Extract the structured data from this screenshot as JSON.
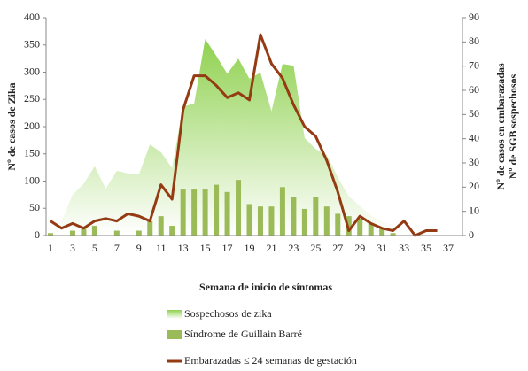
{
  "chart_data": {
    "type": "combo",
    "xlabel": "Semana de inicio de síntomas",
    "ylabel": "Nº de casos de Zika",
    "y2label": [
      "Nº  de casos en embarazadas",
      "Nº  de SGB sospechosos"
    ],
    "categories": [
      1,
      null,
      3,
      null,
      5,
      null,
      7,
      null,
      9,
      null,
      11,
      null,
      13,
      null,
      15,
      null,
      17,
      null,
      19,
      null,
      21,
      null,
      23,
      null,
      25,
      null,
      27,
      null,
      29,
      null,
      31,
      null,
      33,
      null,
      35,
      null,
      37
    ],
    "ylim": [
      0,
      400
    ],
    "yticks": [
      0,
      50,
      100,
      150,
      200,
      250,
      300,
      350,
      400
    ],
    "y2lim": [
      0,
      90
    ],
    "y2ticks": [
      0,
      10,
      20,
      30,
      40,
      50,
      60,
      70,
      80,
      90
    ],
    "series": [
      {
        "name": "Sospechosos de zika",
        "kind": "area",
        "color": "#8fd14f",
        "axis": "y",
        "values": [
          10,
          26,
          75,
          95,
          127,
          86,
          119,
          114,
          112,
          167,
          153,
          124,
          237,
          242,
          361,
          330,
          297,
          325,
          288,
          299,
          228,
          315,
          312,
          179,
          159,
          148,
          107,
          72,
          54,
          37,
          26,
          18,
          11,
          7,
          5,
          7,
          6
        ]
      },
      {
        "name": "Síndrome de Guillain Barré",
        "kind": "bar",
        "color": "#9bbb59",
        "axis": "y2",
        "values": [
          1,
          0,
          2,
          3,
          4,
          0,
          2,
          0,
          2,
          6,
          8,
          4,
          19,
          19,
          19,
          21,
          18,
          23,
          13,
          12,
          12,
          20,
          16,
          11,
          16,
          12,
          9,
          8,
          7,
          5,
          3,
          1,
          0,
          0,
          0,
          0,
          0
        ]
      },
      {
        "name": "Embarazadas ≤ 24 semanas de gestación",
        "kind": "line",
        "color": "#943b14",
        "axis": "y2",
        "values": [
          6,
          3,
          5,
          3,
          6,
          7,
          6,
          9,
          8,
          6,
          21,
          15,
          52,
          66,
          66,
          62,
          57,
          59,
          56,
          83,
          71,
          65,
          54,
          45,
          41,
          31,
          18,
          2,
          8,
          5,
          3,
          2,
          6,
          0,
          2,
          2,
          null
        ]
      }
    ]
  }
}
